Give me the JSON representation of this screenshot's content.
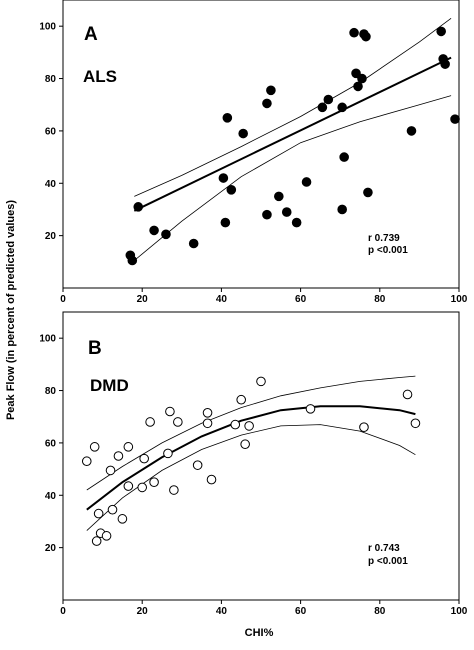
{
  "figure": {
    "y_axis_label": "Peak Flow  (in percent of predicted values)",
    "x_axis_label": "CHI%"
  },
  "chart_data": [
    {
      "type": "scatter",
      "panel_letter": "A",
      "panel_name": "ALS",
      "stats": {
        "r": "r 0.739",
        "p": "p <0.001"
      },
      "xlim": [
        0,
        100
      ],
      "ylim": [
        0,
        110
      ],
      "x_ticks": [
        0,
        20,
        40,
        60,
        80,
        100
      ],
      "y_ticks": [
        20,
        40,
        60,
        80,
        100
      ],
      "marker": "filled-circle",
      "fit": "linear with 95% confidence bands",
      "points": [
        {
          "x": 17,
          "y": 12.5
        },
        {
          "x": 17.5,
          "y": 10.5
        },
        {
          "x": 19,
          "y": 31
        },
        {
          "x": 23,
          "y": 22
        },
        {
          "x": 26,
          "y": 20.5
        },
        {
          "x": 33,
          "y": 17
        },
        {
          "x": 40.5,
          "y": 42
        },
        {
          "x": 41,
          "y": 25
        },
        {
          "x": 41.5,
          "y": 65
        },
        {
          "x": 42.5,
          "y": 37.5
        },
        {
          "x": 45.5,
          "y": 59
        },
        {
          "x": 51.5,
          "y": 28
        },
        {
          "x": 51.5,
          "y": 70.5
        },
        {
          "x": 52.5,
          "y": 75.5
        },
        {
          "x": 54.5,
          "y": 35
        },
        {
          "x": 56.5,
          "y": 29
        },
        {
          "x": 59,
          "y": 25
        },
        {
          "x": 61.5,
          "y": 40.5
        },
        {
          "x": 65.5,
          "y": 69
        },
        {
          "x": 67,
          "y": 72
        },
        {
          "x": 70.5,
          "y": 69
        },
        {
          "x": 70.5,
          "y": 30
        },
        {
          "x": 71,
          "y": 50
        },
        {
          "x": 73.5,
          "y": 97.5
        },
        {
          "x": 74,
          "y": 82
        },
        {
          "x": 74.5,
          "y": 77
        },
        {
          "x": 75.5,
          "y": 80
        },
        {
          "x": 76,
          "y": 97
        },
        {
          "x": 76.5,
          "y": 96
        },
        {
          "x": 77,
          "y": 36.5
        },
        {
          "x": 88,
          "y": 60
        },
        {
          "x": 95.5,
          "y": 98
        },
        {
          "x": 96,
          "y": 87.5
        },
        {
          "x": 96.5,
          "y": 85.5
        },
        {
          "x": 99,
          "y": 64.5
        }
      ],
      "fit_line": {
        "x": [
          18,
          98
        ],
        "y": [
          29.5,
          88
        ]
      },
      "band_upper": {
        "x": [
          18,
          30,
          45,
          60,
          75,
          90,
          98
        ],
        "y": [
          35,
          43,
          54,
          65.5,
          78.5,
          94,
          103
        ]
      },
      "band_lower": {
        "x": [
          18,
          30,
          45,
          60,
          75,
          90,
          98
        ],
        "y": [
          10.5,
          25.5,
          42.5,
          55.5,
          63.5,
          70,
          73.5
        ]
      }
    },
    {
      "type": "scatter",
      "panel_letter": "B",
      "panel_name": "DMD",
      "stats": {
        "r": "r 0.743",
        "p": "p <0.001"
      },
      "xlim": [
        0,
        100
      ],
      "ylim": [
        0,
        110
      ],
      "x_ticks": [
        0,
        20,
        40,
        60,
        80,
        100
      ],
      "y_ticks": [
        20,
        40,
        60,
        80,
        100
      ],
      "marker": "open-circle",
      "fit": "quadratic with 95% confidence bands",
      "points": [
        {
          "x": 6,
          "y": 53
        },
        {
          "x": 8,
          "y": 58.5
        },
        {
          "x": 8.5,
          "y": 22.5
        },
        {
          "x": 9,
          "y": 33
        },
        {
          "x": 9.5,
          "y": 25.5
        },
        {
          "x": 11,
          "y": 24.5
        },
        {
          "x": 12,
          "y": 49.5
        },
        {
          "x": 12.5,
          "y": 34.5
        },
        {
          "x": 14,
          "y": 55
        },
        {
          "x": 15,
          "y": 31
        },
        {
          "x": 16.5,
          "y": 58.5
        },
        {
          "x": 16.5,
          "y": 43.5
        },
        {
          "x": 20,
          "y": 43
        },
        {
          "x": 20.5,
          "y": 54
        },
        {
          "x": 22,
          "y": 68
        },
        {
          "x": 23,
          "y": 45
        },
        {
          "x": 26.5,
          "y": 56
        },
        {
          "x": 27,
          "y": 72
        },
        {
          "x": 28,
          "y": 42
        },
        {
          "x": 29,
          "y": 68
        },
        {
          "x": 34,
          "y": 51.5
        },
        {
          "x": 36.5,
          "y": 71.5
        },
        {
          "x": 36.5,
          "y": 67.5
        },
        {
          "x": 37.5,
          "y": 46
        },
        {
          "x": 43.5,
          "y": 67
        },
        {
          "x": 45,
          "y": 76.5
        },
        {
          "x": 46,
          "y": 59.5
        },
        {
          "x": 47,
          "y": 66.5
        },
        {
          "x": 50,
          "y": 83.5
        },
        {
          "x": 62.5,
          "y": 73
        },
        {
          "x": 76,
          "y": 66
        },
        {
          "x": 87,
          "y": 78.5
        },
        {
          "x": 89,
          "y": 67.5
        }
      ],
      "fit_line": {
        "x": [
          6,
          15,
          25,
          35,
          45,
          55,
          65,
          75,
          85,
          89
        ],
        "y": [
          34.5,
          45,
          54.5,
          62.5,
          68.5,
          72.5,
          74,
          74,
          72.5,
          71
        ]
      },
      "band_upper": {
        "x": [
          6,
          15,
          25,
          35,
          45,
          55,
          65,
          75,
          85,
          89
        ],
        "y": [
          42,
          51,
          60,
          67.5,
          73.5,
          78,
          81,
          83.5,
          85,
          85.5
        ]
      },
      "band_lower": {
        "x": [
          6,
          15,
          25,
          35,
          45,
          55,
          65,
          75,
          85,
          89
        ],
        "y": [
          26.5,
          39,
          49.5,
          57.5,
          63,
          66.5,
          67,
          64.5,
          59,
          55.5
        ]
      }
    }
  ]
}
